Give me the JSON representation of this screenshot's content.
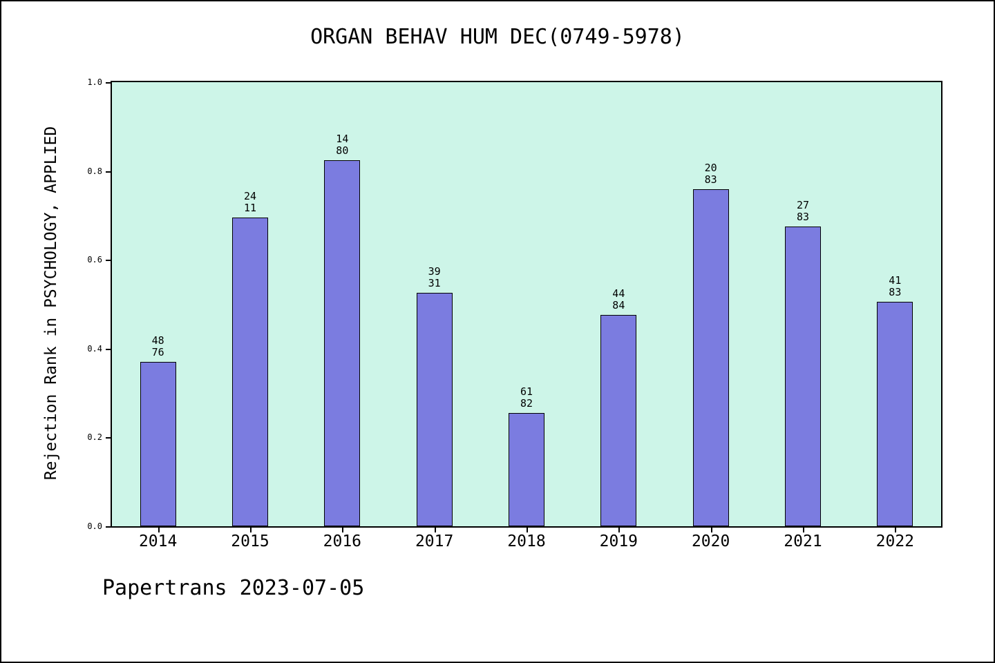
{
  "footer": "Papertrans 2023-07-05",
  "colors": {
    "bar_fill": "#7b7ce0",
    "bar_border": "#000000",
    "plot_background": "#cdf5e8",
    "page_background": "#ffffff"
  },
  "chart_data": {
    "type": "bar",
    "title": "ORGAN BEHAV HUM DEC(0749-5978)",
    "ylabel": "Rejection Rank in PSYCHOLOGY, APPLIED",
    "xlabel": "",
    "categories": [
      "2014",
      "2015",
      "2016",
      "2017",
      "2018",
      "2019",
      "2020",
      "2021",
      "2022"
    ],
    "values": [
      0.37,
      0.695,
      0.825,
      0.525,
      0.255,
      0.476,
      0.759,
      0.675,
      0.506
    ],
    "bar_labels": [
      [
        "48",
        "76"
      ],
      [
        "24",
        "11"
      ],
      [
        "14",
        "80"
      ],
      [
        "39",
        "31"
      ],
      [
        "61",
        "82"
      ],
      [
        "44",
        "84"
      ],
      [
        "20",
        "83"
      ],
      [
        "27",
        "83"
      ],
      [
        "41",
        "83"
      ]
    ],
    "ylim": [
      0.0,
      1.0
    ],
    "yticks": [
      "0.0",
      "0.2",
      "0.4",
      "0.6",
      "0.8",
      "1.0"
    ],
    "grid": false,
    "legend": "none"
  }
}
